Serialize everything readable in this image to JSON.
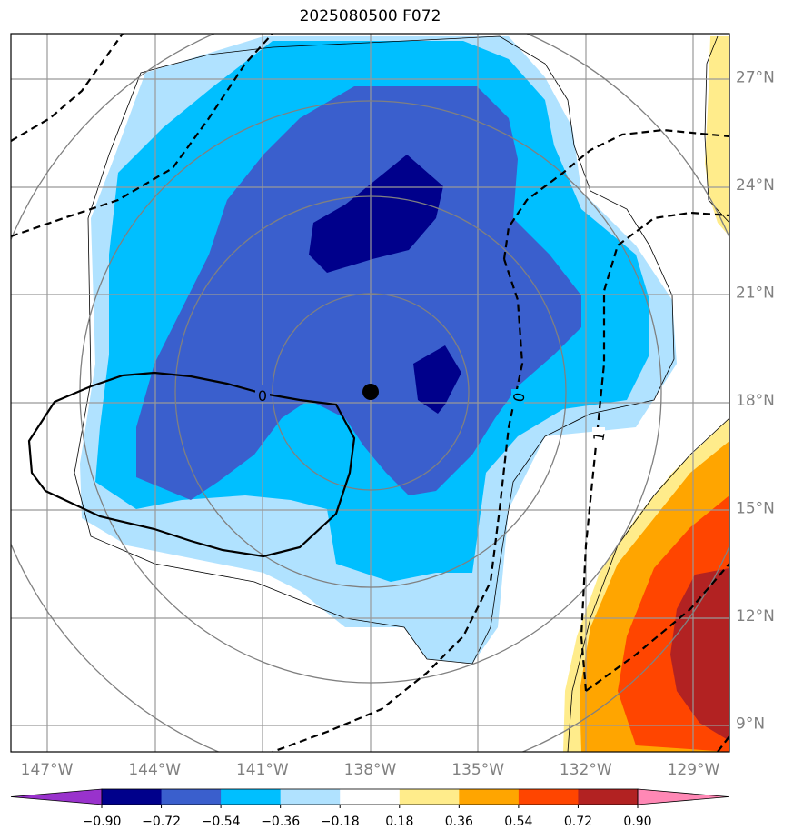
{
  "title": "2025080500 F072",
  "map": {
    "lon_range": [
      -148,
      -128
    ],
    "lat_range": [
      8.2,
      28.2
    ],
    "lon_ticks": [
      {
        "value": -147,
        "label": "147°W"
      },
      {
        "value": -144,
        "label": "144°W"
      },
      {
        "value": -141,
        "label": "141°W"
      },
      {
        "value": -138,
        "label": "138°W"
      },
      {
        "value": -135,
        "label": "135°W"
      },
      {
        "value": -132,
        "label": "132°W"
      },
      {
        "value": -129,
        "label": "129°W"
      }
    ],
    "lat_ticks": [
      {
        "value": 27,
        "label": "27°N"
      },
      {
        "value": 24,
        "label": "24°N"
      },
      {
        "value": 21,
        "label": "21°N"
      },
      {
        "value": 18,
        "label": "18°N"
      },
      {
        "value": 15,
        "label": "15°N"
      },
      {
        "value": 12,
        "label": "12°N"
      },
      {
        "value": 9,
        "label": "9°N"
      }
    ],
    "storm_center": {
      "lon": -138.0,
      "lat": 18.3
    },
    "contour_labels": [
      "0",
      "0",
      "1"
    ]
  },
  "colorbar": {
    "boundaries": [
      "−0.90",
      "−0.72",
      "−0.54",
      "−0.36",
      "−0.18",
      "0.18",
      "0.36",
      "0.54",
      "0.72",
      "0.90"
    ],
    "colors": [
      "#9932CC",
      "#00008B",
      "#3A5FCD",
      "#00BFFF",
      "#B0E2FF",
      "#FFFFFF",
      "#FFEC8B",
      "#FFA500",
      "#FF4500",
      "#B22222",
      "#FF88B5"
    ]
  },
  "palette": {
    "light_blue": "#B0E2FF",
    "sky_blue": "#00BFFF",
    "royal_blue": "#3A5FCD",
    "navy": "#00008B",
    "yellow": "#FFEC8B",
    "orange": "#FFA500",
    "red_orange": "#FF4500",
    "firebrick": "#B22222"
  }
}
